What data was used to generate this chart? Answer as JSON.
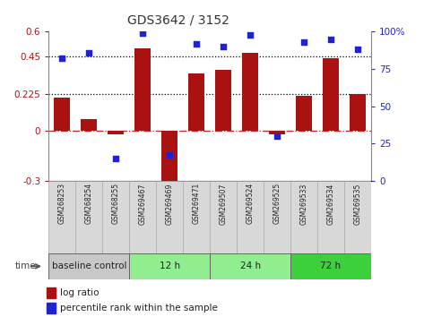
{
  "title": "GDS3642 / 3152",
  "samples": [
    "GSM268253",
    "GSM268254",
    "GSM268255",
    "GSM269467",
    "GSM269469",
    "GSM269471",
    "GSM269507",
    "GSM269524",
    "GSM269525",
    "GSM269533",
    "GSM269534",
    "GSM269535"
  ],
  "log_ratio": [
    0.2,
    0.07,
    -0.02,
    0.5,
    -0.36,
    0.35,
    0.37,
    0.47,
    -0.02,
    0.21,
    0.44,
    0.225
  ],
  "percentile_rank": [
    82,
    86,
    15,
    99,
    17,
    92,
    90,
    98,
    30,
    93,
    95,
    88
  ],
  "bar_color": "#aa1111",
  "dot_color": "#2222cc",
  "zero_line_color": "#cc2222",
  "dotted_line_color": "#000000",
  "ylim_left": [
    -0.3,
    0.6
  ],
  "ylim_right": [
    0,
    100
  ],
  "yticks_left": [
    -0.3,
    0.0,
    0.225,
    0.45,
    0.6
  ],
  "ytick_labels_left": [
    "-0.3",
    "0",
    "0.225",
    "0.45",
    "0.6"
  ],
  "yticks_right": [
    0,
    25,
    50,
    75,
    100
  ],
  "ytick_labels_right": [
    "0",
    "25",
    "50",
    "75",
    "100%"
  ],
  "hlines": [
    0.225,
    0.45
  ],
  "groups": [
    {
      "label": "baseline control",
      "start": 0,
      "end": 3,
      "color": "#c8c8c8"
    },
    {
      "label": "12 h",
      "start": 3,
      "end": 6,
      "color": "#90ee90"
    },
    {
      "label": "24 h",
      "start": 6,
      "end": 9,
      "color": "#90ee90"
    },
    {
      "label": "72 h",
      "start": 9,
      "end": 12,
      "color": "#3cd03c"
    }
  ],
  "time_label": "time",
  "legend_bar_label": "log ratio",
  "legend_dot_label": "percentile rank within the sample",
  "bg_color": "#ffffff",
  "label_bg_color": "#d8d8d8",
  "label_edge_color": "#aaaaaa",
  "group_edge_color": "#666666"
}
